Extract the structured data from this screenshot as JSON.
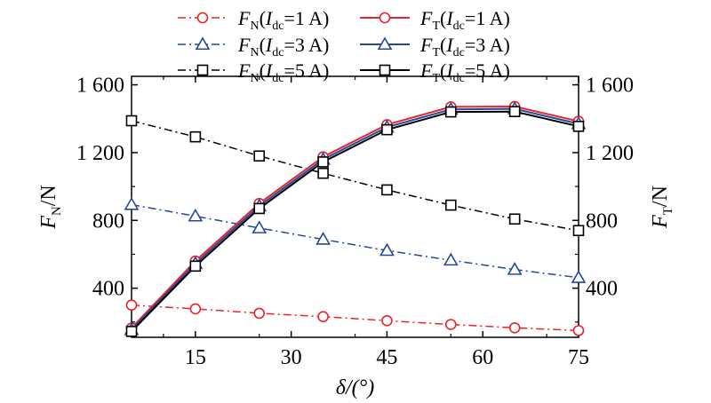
{
  "chart_data": {
    "type": "line",
    "x": [
      5,
      15,
      25,
      35,
      45,
      55,
      65,
      75
    ],
    "xlim": [
      5,
      75
    ],
    "ylim": [
      110,
      1650
    ],
    "x_ticks": [
      15,
      30,
      45,
      60,
      75
    ],
    "x_tick_labels": [
      "15",
      "30",
      "45",
      "60",
      "75"
    ],
    "y_ticks": [
      400,
      800,
      1200,
      1600
    ],
    "y_tick_labels": [
      "400",
      "800",
      "1 200",
      "1 600"
    ],
    "y_right_tick_labels": [
      "400",
      "800",
      "1 200",
      "1 600"
    ],
    "xlabel": {
      "main": "δ/(°)"
    },
    "ylabel_left": {
      "main": "F",
      "sub": "N",
      "suffix": "/N"
    },
    "ylabel_right": {
      "main": "F",
      "sub": "T",
      "suffix": "/N"
    },
    "legend_position": "top",
    "series": [
      {
        "label": {
          "main": "F",
          "sub": "N",
          "open": "(",
          "ivar": "I",
          "isub": "dc",
          "value": "=1 A)"
        },
        "color": "#e8232a",
        "marker": "circle",
        "dash": "dashdot",
        "values": [
          300,
          278,
          252,
          232,
          208,
          186,
          166,
          150
        ]
      },
      {
        "label": {
          "main": "F",
          "sub": "N",
          "open": "(",
          "ivar": "I",
          "isub": "dc",
          "value": "=3 A)"
        },
        "color": "#27479a",
        "marker": "triangle",
        "dash": "dashdot",
        "values": [
          893,
          825,
          755,
          688,
          622,
          565,
          510,
          462
        ]
      },
      {
        "label": {
          "main": "F",
          "sub": "N",
          "open": "(",
          "ivar": "I",
          "isub": "dc",
          "value": "=5 A)"
        },
        "color": "#000000",
        "marker": "square",
        "dash": "dashdot",
        "values": [
          1388,
          1293,
          1180,
          1078,
          980,
          890,
          808,
          740
        ]
      },
      {
        "label": {
          "main": "F",
          "sub": "T",
          "open": "(",
          "ivar": "I",
          "isub": "dc",
          "value": "=1 A)"
        },
        "color": "#e8232a",
        "marker": "circle",
        "dash": "solid",
        "values": [
          165,
          560,
          900,
          1175,
          1365,
          1470,
          1472,
          1385
        ]
      },
      {
        "label": {
          "main": "F",
          "sub": "T",
          "open": "(",
          "ivar": "I",
          "isub": "dc",
          "value": "=3 A)"
        },
        "color": "#27479a",
        "marker": "triangle",
        "dash": "solid",
        "values": [
          155,
          545,
          885,
          1160,
          1350,
          1455,
          1458,
          1370
        ]
      },
      {
        "label": {
          "main": "F",
          "sub": "T",
          "open": "(",
          "ivar": "I",
          "isub": "dc",
          "value": "=5 A)"
        },
        "color": "#000000",
        "marker": "square",
        "dash": "solid",
        "values": [
          145,
          530,
          870,
          1145,
          1335,
          1440,
          1442,
          1355
        ]
      }
    ]
  }
}
